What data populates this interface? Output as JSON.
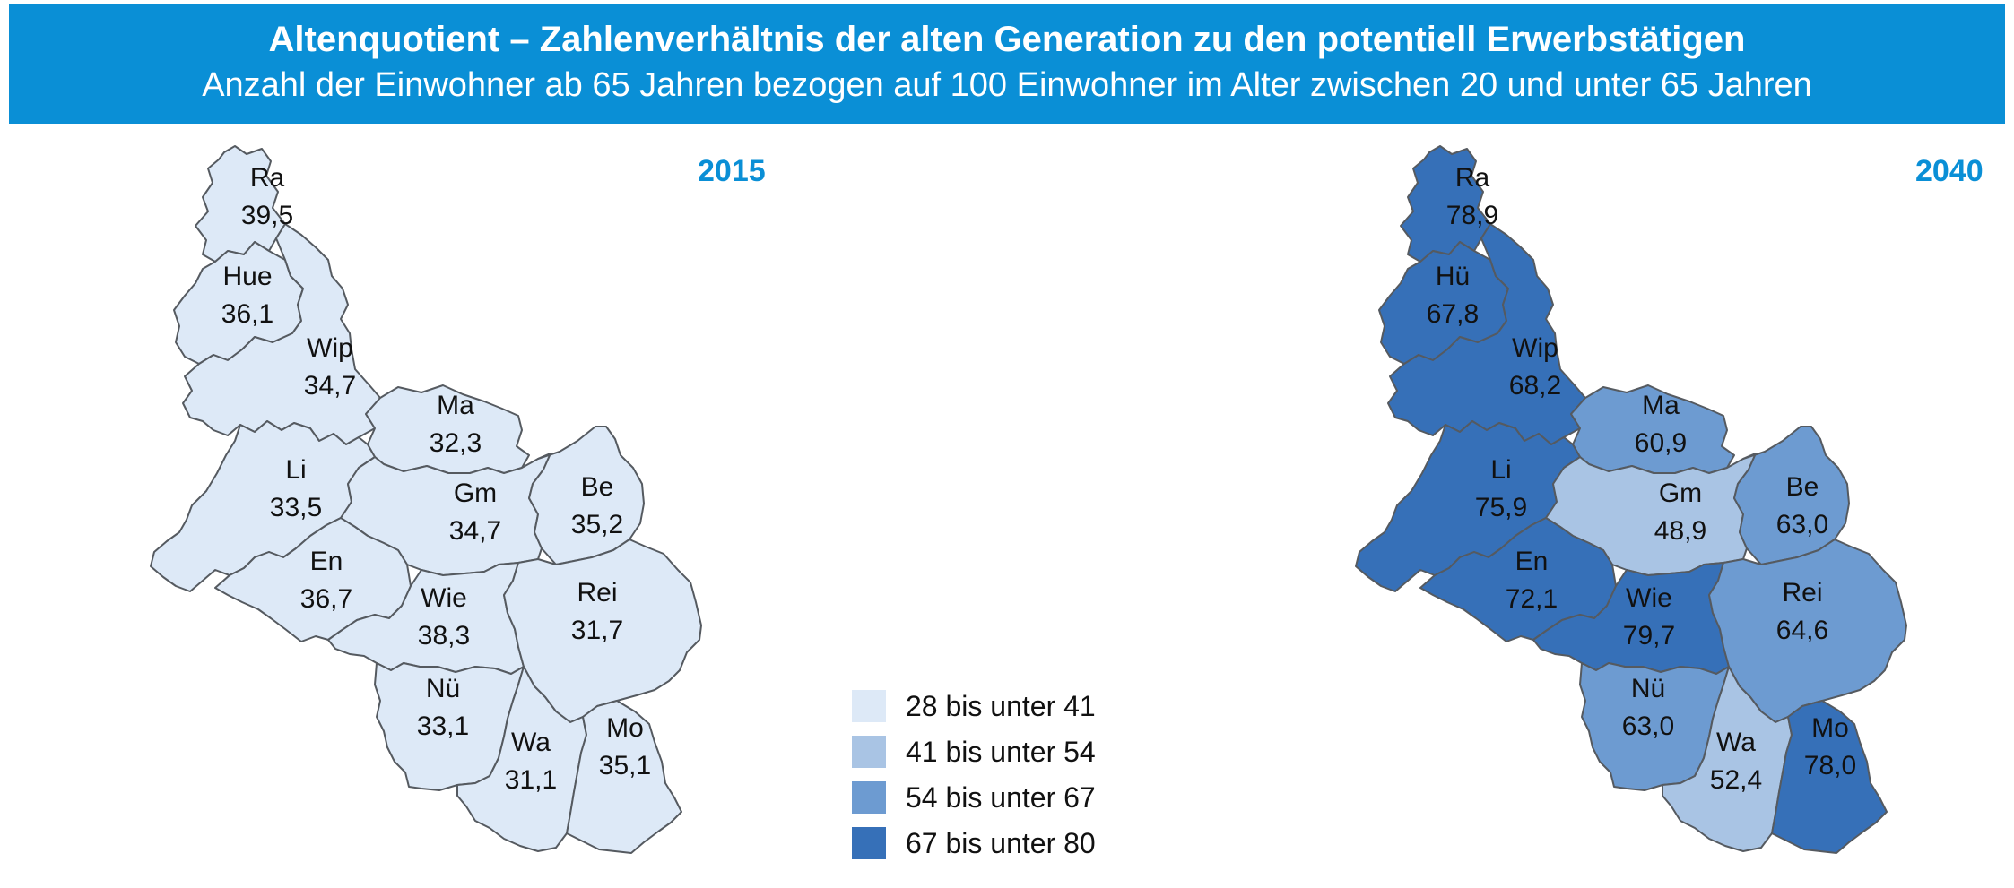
{
  "header": {
    "title": "Altenquotient –  Zahlenverhältnis der alten Generation zu den potentiell Erwerbstätigen",
    "subtitle": "Anzahl der Einwohner ab 65  Jahren bezogen auf 100 Einwohner im Alter zwischen 20 und unter 65 Jahren"
  },
  "colors": {
    "banner": "#0a8fd6",
    "class1": "#dde9f7",
    "class2": "#a9c4e4",
    "class3": "#6d9bd1",
    "class4": "#3670b8",
    "border": "#555a60"
  },
  "legend": [
    {
      "label": "28 bis unter 41",
      "cls": 1
    },
    {
      "label": "41 bis unter 54",
      "cls": 2
    },
    {
      "label": "54 bis unter 67",
      "cls": 3
    },
    {
      "label": "67 bis unter 80",
      "cls": 4
    }
  ],
  "maps": [
    {
      "year": "2015",
      "districts": [
        {
          "id": "ra",
          "abbr": "Ra",
          "value": "39,5",
          "cls": 1
        },
        {
          "id": "hue",
          "abbr": "Hue",
          "value": "36,1",
          "cls": 1
        },
        {
          "id": "wip",
          "abbr": "Wip",
          "value": "34,7",
          "cls": 1
        },
        {
          "id": "ma",
          "abbr": "Ma",
          "value": "32,3",
          "cls": 1
        },
        {
          "id": "li",
          "abbr": "Li",
          "value": "33,5",
          "cls": 1
        },
        {
          "id": "gm",
          "abbr": "Gm",
          "value": "34,7",
          "cls": 1
        },
        {
          "id": "be",
          "abbr": "Be",
          "value": "35,2",
          "cls": 1
        },
        {
          "id": "en",
          "abbr": "En",
          "value": "36,7",
          "cls": 1
        },
        {
          "id": "wie",
          "abbr": "Wie",
          "value": "38,3",
          "cls": 1
        },
        {
          "id": "rei",
          "abbr": "Rei",
          "value": "31,7",
          "cls": 1
        },
        {
          "id": "nue",
          "abbr": "Nü",
          "value": "33,1",
          "cls": 1
        },
        {
          "id": "wa",
          "abbr": "Wa",
          "value": "31,1",
          "cls": 1
        },
        {
          "id": "mo",
          "abbr": "Mo",
          "value": "35,1",
          "cls": 1
        }
      ]
    },
    {
      "year": "2040",
      "districts": [
        {
          "id": "ra",
          "abbr": "Ra",
          "value": "78,9",
          "cls": 4
        },
        {
          "id": "hue",
          "abbr": "Hü",
          "value": "67,8",
          "cls": 4
        },
        {
          "id": "wip",
          "abbr": "Wip",
          "value": "68,2",
          "cls": 4
        },
        {
          "id": "ma",
          "abbr": "Ma",
          "value": "60,9",
          "cls": 3
        },
        {
          "id": "li",
          "abbr": "Li",
          "value": "75,9",
          "cls": 4
        },
        {
          "id": "gm",
          "abbr": "Gm",
          "value": "48,9",
          "cls": 2
        },
        {
          "id": "be",
          "abbr": "Be",
          "value": "63,0",
          "cls": 3
        },
        {
          "id": "en",
          "abbr": "En",
          "value": "72,1",
          "cls": 4
        },
        {
          "id": "wie",
          "abbr": "Wie",
          "value": "79,7",
          "cls": 4
        },
        {
          "id": "rei",
          "abbr": "Rei",
          "value": "64,6",
          "cls": 3
        },
        {
          "id": "nue",
          "abbr": "Nü",
          "value": "63,0",
          "cls": 3
        },
        {
          "id": "wa",
          "abbr": "Wa",
          "value": "52,4",
          "cls": 2
        },
        {
          "id": "mo",
          "abbr": "Mo",
          "value": "78,0",
          "cls": 4
        }
      ]
    }
  ]
}
